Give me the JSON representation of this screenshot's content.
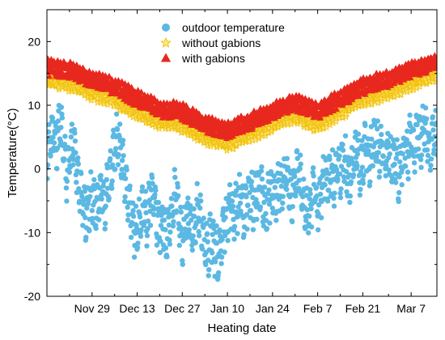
{
  "chart_data": {
    "type": "scatter",
    "title": "",
    "xlabel": "Heating date",
    "ylabel": "Temperature(°C)",
    "x_start": "2023-11-15",
    "x_end": "2024-03-15",
    "xlim": [
      "2023-11-15",
      "2024-03-15"
    ],
    "ylim": [
      -20,
      25
    ],
    "grid": false,
    "legend_position": "top-center",
    "x_ticks": [
      {
        "date": "2023-11-29",
        "label": "Nov 29"
      },
      {
        "date": "2023-12-13",
        "label": "Dec 13"
      },
      {
        "date": "2023-12-27",
        "label": "Dec 27"
      },
      {
        "date": "2024-01-10",
        "label": "Jan 10"
      },
      {
        "date": "2024-01-24",
        "label": "Jan 24"
      },
      {
        "date": "2024-02-07",
        "label": "Feb 7"
      },
      {
        "date": "2024-02-21",
        "label": "Feb 21"
      },
      {
        "date": "2024-03-07",
        "label": "Mar 7"
      }
    ],
    "y_ticks": [
      {
        "value": -20,
        "label": "-20"
      },
      {
        "value": -10,
        "label": "-10"
      },
      {
        "value": 0,
        "label": "0"
      },
      {
        "value": 10,
        "label": "10"
      },
      {
        "value": 20,
        "label": "20"
      }
    ],
    "series": [
      {
        "name": "outdoor temperature",
        "marker": "circle",
        "color": "#5bb8e2",
        "points": [
          [
            "2023-11-15",
            2
          ],
          [
            "2023-11-16",
            4
          ],
          [
            "2023-11-17",
            6
          ],
          [
            "2023-11-18",
            3
          ],
          [
            "2023-11-19",
            8
          ],
          [
            "2023-11-20",
            4
          ],
          [
            "2023-11-21",
            -1
          ],
          [
            "2023-11-22",
            2
          ],
          [
            "2023-11-23",
            5
          ],
          [
            "2023-11-24",
            1
          ],
          [
            "2023-11-25",
            -3
          ],
          [
            "2023-11-26",
            -5
          ],
          [
            "2023-11-27",
            -8
          ],
          [
            "2023-11-28",
            -6
          ],
          [
            "2023-11-29",
            -4
          ],
          [
            "2023-11-30",
            -7
          ],
          [
            "2023-12-01",
            -5
          ],
          [
            "2023-12-02",
            -3
          ],
          [
            "2023-12-03",
            -6
          ],
          [
            "2023-12-04",
            -2
          ],
          [
            "2023-12-05",
            1
          ],
          [
            "2023-12-06",
            3
          ],
          [
            "2023-12-07",
            5
          ],
          [
            "2023-12-08",
            2
          ],
          [
            "2023-12-09",
            0
          ],
          [
            "2023-12-10",
            -4
          ],
          [
            "2023-12-11",
            -7
          ],
          [
            "2023-12-12",
            -9
          ],
          [
            "2023-12-13",
            -11
          ],
          [
            "2023-12-14",
            -8
          ],
          [
            "2023-12-15",
            -6
          ],
          [
            "2023-12-16",
            -9
          ],
          [
            "2023-12-17",
            -5
          ],
          [
            "2023-12-18",
            -3
          ],
          [
            "2023-12-19",
            -7
          ],
          [
            "2023-12-20",
            -10
          ],
          [
            "2023-12-21",
            -8
          ],
          [
            "2023-12-22",
            -12
          ],
          [
            "2023-12-23",
            -9
          ],
          [
            "2023-12-24",
            -6
          ],
          [
            "2023-12-25",
            -4
          ],
          [
            "2023-12-26",
            -8
          ],
          [
            "2023-12-27",
            -11
          ],
          [
            "2023-12-28",
            -9
          ],
          [
            "2023-12-29",
            -7
          ],
          [
            "2023-12-30",
            -10
          ],
          [
            "2023-12-31",
            -8
          ],
          [
            "2024-01-01",
            -6
          ],
          [
            "2024-01-02",
            -9
          ],
          [
            "2024-01-03",
            -11
          ],
          [
            "2024-01-04",
            -13
          ],
          [
            "2024-01-05",
            -10
          ],
          [
            "2024-01-06",
            -12
          ],
          [
            "2024-01-07",
            -14
          ],
          [
            "2024-01-08",
            -12
          ],
          [
            "2024-01-09",
            -9
          ],
          [
            "2024-01-10",
            -7
          ],
          [
            "2024-01-11",
            -5
          ],
          [
            "2024-01-12",
            -8
          ],
          [
            "2024-01-13",
            -6
          ],
          [
            "2024-01-14",
            -4
          ],
          [
            "2024-01-15",
            -7
          ],
          [
            "2024-01-16",
            -5
          ],
          [
            "2024-01-17",
            -3
          ],
          [
            "2024-01-18",
            -6
          ],
          [
            "2024-01-19",
            -4
          ],
          [
            "2024-01-20",
            -2
          ],
          [
            "2024-01-21",
            -5
          ],
          [
            "2024-01-22",
            -7
          ],
          [
            "2024-01-23",
            -4
          ],
          [
            "2024-01-24",
            -3
          ],
          [
            "2024-01-25",
            -5
          ],
          [
            "2024-01-26",
            -2
          ],
          [
            "2024-01-27",
            -4
          ],
          [
            "2024-01-28",
            -1
          ],
          [
            "2024-01-29",
            -3
          ],
          [
            "2024-01-30",
            -5
          ],
          [
            "2024-01-31",
            -2
          ],
          [
            "2024-02-01",
            0
          ],
          [
            "2024-02-02",
            -3
          ],
          [
            "2024-02-03",
            -6
          ],
          [
            "2024-02-04",
            -8
          ],
          [
            "2024-02-05",
            -5
          ],
          [
            "2024-02-06",
            -3
          ],
          [
            "2024-02-07",
            -6
          ],
          [
            "2024-02-08",
            -4
          ],
          [
            "2024-02-09",
            -1
          ],
          [
            "2024-02-10",
            -3
          ],
          [
            "2024-02-11",
            0
          ],
          [
            "2024-02-12",
            -2
          ],
          [
            "2024-02-13",
            1
          ],
          [
            "2024-02-14",
            -1
          ],
          [
            "2024-02-15",
            2
          ],
          [
            "2024-02-16",
            0
          ],
          [
            "2024-02-17",
            -2
          ],
          [
            "2024-02-18",
            1
          ],
          [
            "2024-02-19",
            3
          ],
          [
            "2024-02-20",
            0
          ],
          [
            "2024-02-21",
            2
          ],
          [
            "2024-02-22",
            4
          ],
          [
            "2024-02-23",
            1
          ],
          [
            "2024-02-24",
            3
          ],
          [
            "2024-02-25",
            5
          ],
          [
            "2024-02-26",
            2
          ],
          [
            "2024-02-27",
            4
          ],
          [
            "2024-02-28",
            1
          ],
          [
            "2024-02-29",
            3
          ],
          [
            "2024-03-01",
            0
          ],
          [
            "2024-03-02",
            2
          ],
          [
            "2024-03-03",
            -1
          ],
          [
            "2024-03-04",
            1
          ],
          [
            "2024-03-05",
            4
          ],
          [
            "2024-03-06",
            2
          ],
          [
            "2024-03-07",
            5
          ],
          [
            "2024-03-08",
            3
          ],
          [
            "2024-03-09",
            6
          ],
          [
            "2024-03-10",
            4
          ],
          [
            "2024-03-11",
            7
          ],
          [
            "2024-03-12",
            5
          ],
          [
            "2024-03-13",
            3
          ],
          [
            "2024-03-14",
            6
          ],
          [
            "2024-03-15",
            4
          ]
        ]
      },
      {
        "name": "without gabions",
        "marker": "star",
        "color": "#f0c000",
        "points": [
          [
            "2023-11-15",
            14
          ],
          [
            "2023-11-22",
            13.5
          ],
          [
            "2023-11-29",
            12
          ],
          [
            "2023-12-06",
            11
          ],
          [
            "2023-12-13",
            9
          ],
          [
            "2023-12-20",
            7.5
          ],
          [
            "2023-12-27",
            7
          ],
          [
            "2024-01-03",
            5
          ],
          [
            "2024-01-10",
            4
          ],
          [
            "2024-01-17",
            5.5
          ],
          [
            "2024-01-24",
            7
          ],
          [
            "2024-01-31",
            8.5
          ],
          [
            "2024-02-07",
            7
          ],
          [
            "2024-02-14",
            9
          ],
          [
            "2024-02-21",
            11
          ],
          [
            "2024-02-28",
            12
          ],
          [
            "2024-03-07",
            13.5
          ],
          [
            "2024-03-15",
            15
          ]
        ]
      },
      {
        "name": "with gabions",
        "marker": "triangle",
        "color": "#e8281e",
        "points": [
          [
            "2023-11-15",
            16
          ],
          [
            "2023-11-22",
            15.5
          ],
          [
            "2023-11-29",
            14
          ],
          [
            "2023-12-06",
            13
          ],
          [
            "2023-12-13",
            11
          ],
          [
            "2023-12-20",
            9.5
          ],
          [
            "2023-12-27",
            9
          ],
          [
            "2024-01-03",
            7
          ],
          [
            "2024-01-10",
            6
          ],
          [
            "2024-01-17",
            7.5
          ],
          [
            "2024-01-24",
            9
          ],
          [
            "2024-01-31",
            10.5
          ],
          [
            "2024-02-07",
            9
          ],
          [
            "2024-02-14",
            11
          ],
          [
            "2024-02-21",
            13
          ],
          [
            "2024-02-28",
            14
          ],
          [
            "2024-03-07",
            15.5
          ],
          [
            "2024-03-15",
            17
          ]
        ]
      }
    ]
  }
}
